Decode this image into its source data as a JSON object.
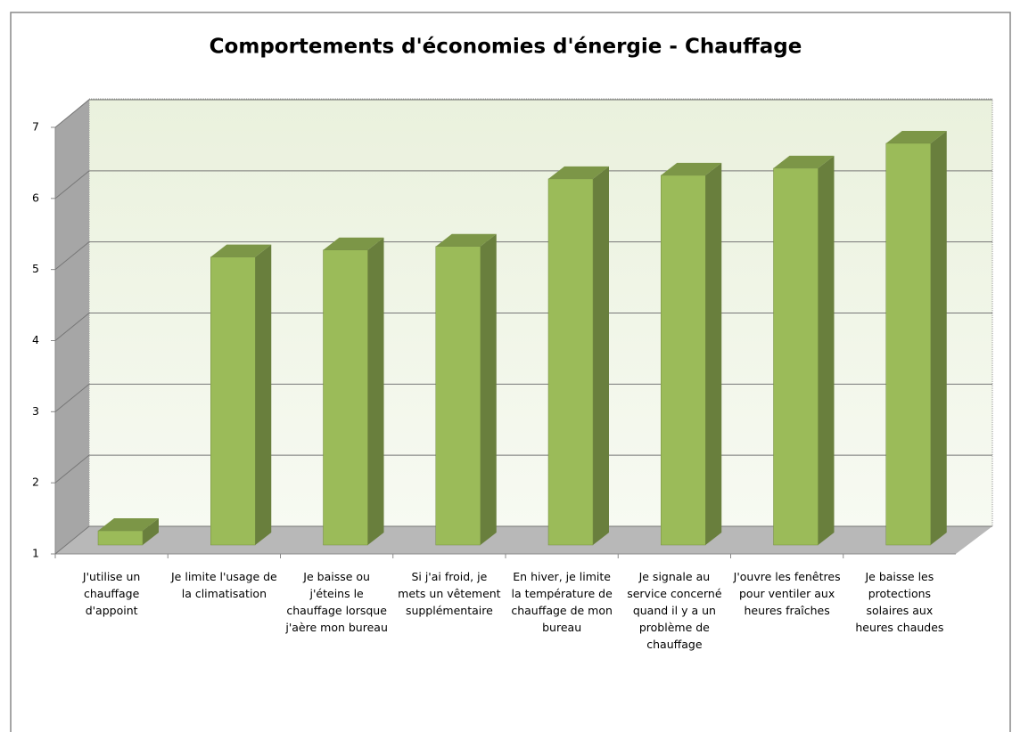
{
  "chart_data": {
    "type": "bar3d",
    "title": "Comportements d'économies d'énergie  - Chauffage",
    "categories": [
      "J'utilise un chauffage d'appoint",
      "Je limite  l'usage de la climatisation",
      "Je baisse ou j'éteins le chauffage lorsque j'aère mon bureau",
      "Si j'ai froid, je mets un vêtement supplémentaire",
      "En hiver, je limite la température de chauffage de mon bureau",
      "Je signale au service concerné quand il y a un problème de chauffage",
      "J'ouvre les fenêtres pour ventiler aux heures fraîches",
      "Je baisse les protections solaires aux heures chaudes"
    ],
    "values": [
      1.2,
      5.05,
      5.15,
      5.2,
      6.15,
      6.2,
      6.3,
      6.65
    ],
    "color": "#9bbb59",
    "ylim": [
      1,
      7
    ],
    "yticks": [
      1,
      2,
      3,
      4,
      5,
      6,
      7
    ],
    "grid": true
  }
}
